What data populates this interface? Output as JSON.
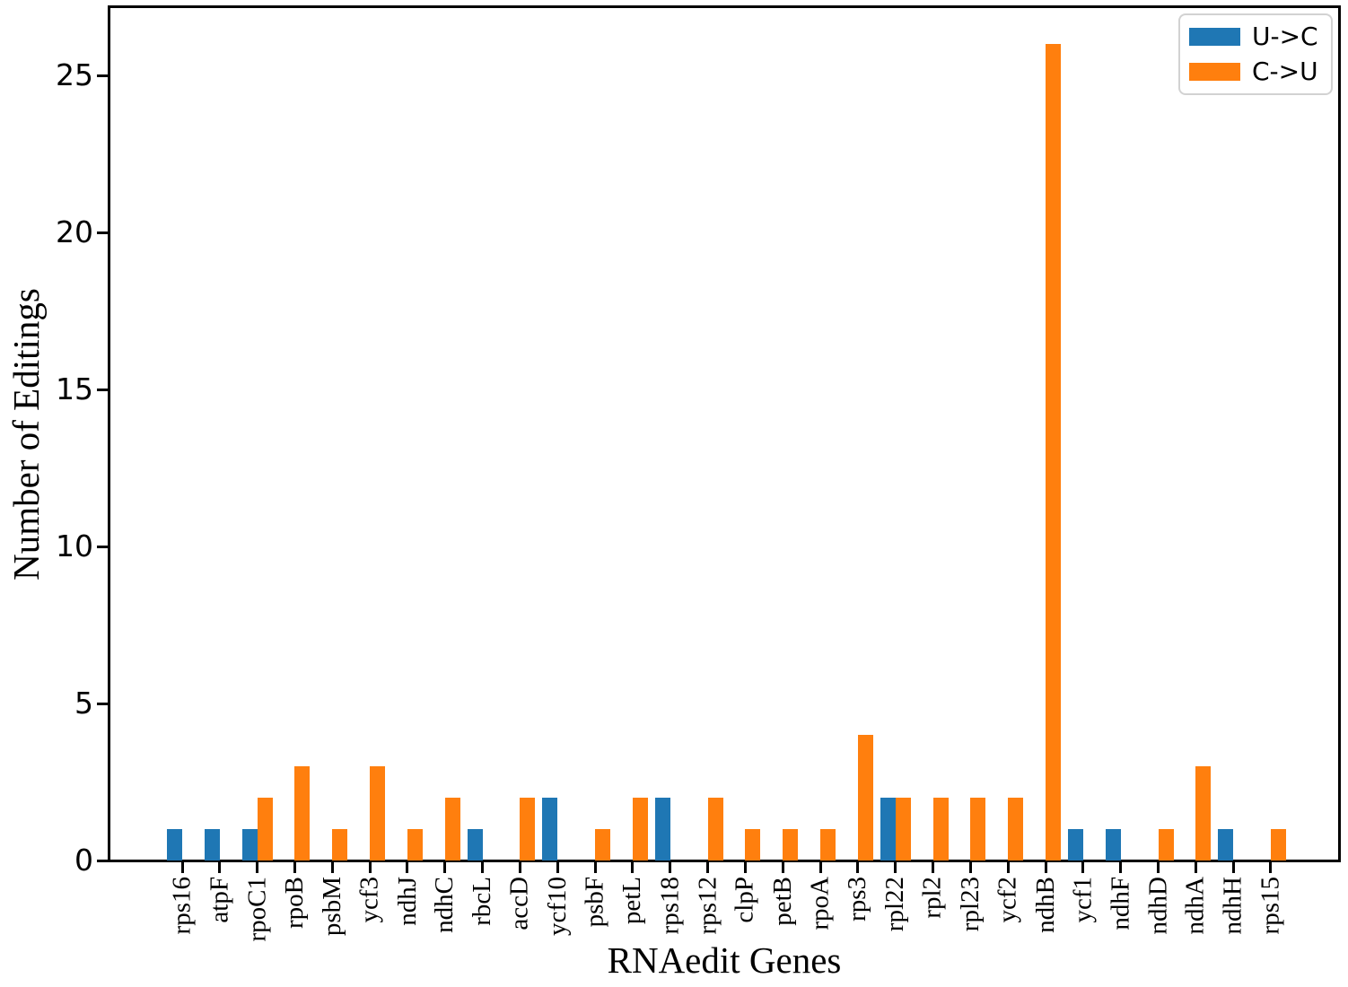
{
  "chart_data": {
    "type": "bar",
    "title": "",
    "xlabel": "RNAedit Genes",
    "ylabel": "Number of Editings",
    "categories": [
      "rps16",
      "atpF",
      "rpoC1",
      "rpoB",
      "psbM",
      "ycf3",
      "ndhJ",
      "ndhC",
      "rbcL",
      "accD",
      "ycf10",
      "psbF",
      "petL",
      "rps18",
      "rps12",
      "clpP",
      "petB",
      "rpoA",
      "rps3",
      "rpl22",
      "rpl2",
      "rpl23",
      "ycf2",
      "ndhB",
      "ycf1",
      "ndhF",
      "ndhD",
      "ndhA",
      "ndhH",
      "rps15"
    ],
    "series": [
      {
        "name": "U->C",
        "color": "#1f77b4",
        "values": [
          1,
          1,
          1,
          0,
          0,
          0,
          0,
          0,
          1,
          0,
          2,
          0,
          0,
          2,
          0,
          0,
          0,
          0,
          0,
          2,
          0,
          0,
          0,
          0,
          1,
          1,
          0,
          0,
          1,
          0
        ]
      },
      {
        "name": "C->U",
        "color": "#ff7f0e",
        "values": [
          0,
          0,
          2,
          3,
          1,
          3,
          1,
          2,
          0,
          2,
          0,
          1,
          2,
          0,
          2,
          1,
          1,
          1,
          4,
          2,
          2,
          2,
          2,
          26,
          0,
          0,
          1,
          3,
          0,
          1
        ]
      }
    ],
    "y_ticks": [
      0,
      5,
      10,
      15,
      20,
      25
    ],
    "ylim": [
      0,
      27.2
    ],
    "grid": false,
    "legend_position": "upper-right-inside",
    "x_tick_rotation": 90
  }
}
